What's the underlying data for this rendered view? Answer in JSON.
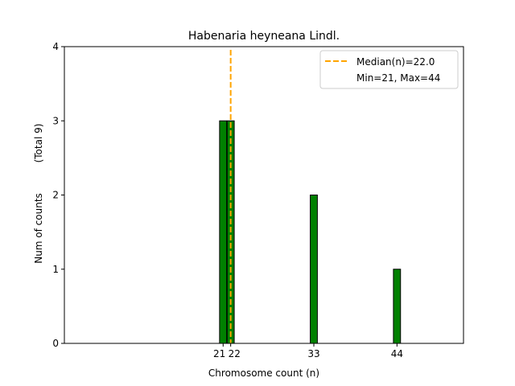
{
  "chart_data": {
    "type": "bar",
    "title": "Habenaria heyneana Lindl.",
    "xlabel": "Chromosome count (n)",
    "ylabel": "Num of counts",
    "ylabel_secondary": "(Total 9)",
    "x": [
      21,
      22,
      33,
      44
    ],
    "values": [
      3,
      3,
      2,
      1
    ],
    "xlim": [
      0,
      52.8
    ],
    "ylim": [
      0,
      4
    ],
    "xticks": [
      "21",
      "22",
      "33",
      "44"
    ],
    "yticks": [
      "0",
      "1",
      "2",
      "3",
      "4"
    ],
    "bar_color": "#008000",
    "median": 22.0,
    "median_color": "#FFA500",
    "legend": {
      "placement": "top-right",
      "entries": [
        "Median(n)=22.0",
        "Min=21, Max=44"
      ]
    },
    "grid": false
  }
}
